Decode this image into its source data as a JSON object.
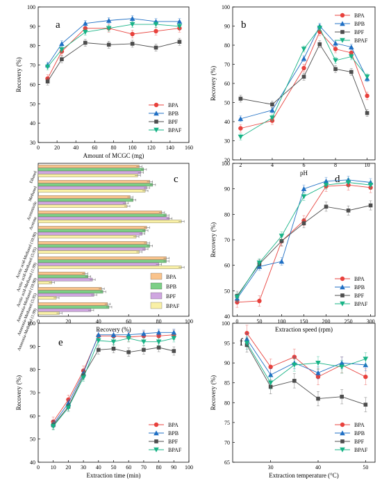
{
  "colors": {
    "BPA": "#e8413c",
    "BPB": "#1f6fc4",
    "BPF": "#4d4d4d",
    "BPAF": "#17b386",
    "bar_BPA": "#f9c38c",
    "bar_BPB": "#7ccf86",
    "bar_BPF": "#cfa6e0",
    "bar_BPAF": "#f9f0a6"
  },
  "chart_data": [
    {
      "id": "a",
      "type": "line",
      "panel_label": "a",
      "xlabel": "Amount of MCGC (mg)",
      "ylabel": "Recovery (%)",
      "xlim": [
        0,
        160
      ],
      "ylim": [
        30,
        100
      ],
      "xticks": [
        0,
        20,
        40,
        60,
        80,
        100,
        120,
        140,
        160
      ],
      "yticks": [
        30,
        40,
        50,
        60,
        70,
        80,
        90,
        100
      ],
      "x": [
        10,
        25,
        50,
        75,
        100,
        125,
        150
      ],
      "legend_position": "bottom-right",
      "series": [
        {
          "name": "BPA",
          "values": [
            63,
            77,
            89,
            89,
            86,
            87.5,
            89
          ]
        },
        {
          "name": "BPB",
          "values": [
            70,
            81,
            91.5,
            93,
            94,
            92.5,
            92.5
          ]
        },
        {
          "name": "BPF",
          "values": [
            61.5,
            73,
            81.5,
            80.5,
            81,
            79,
            82
          ]
        },
        {
          "name": "BPAF",
          "values": [
            69,
            78,
            87,
            89,
            91,
            91,
            90
          ]
        }
      ]
    },
    {
      "id": "b",
      "type": "line",
      "panel_label": "b",
      "xlabel": "pH",
      "ylabel": "Recovery (%)",
      "xlim": [
        1.5,
        10.5
      ],
      "ylim": [
        20,
        100
      ],
      "xticks": [
        2,
        4,
        6,
        8,
        10
      ],
      "yticks": [
        20,
        30,
        40,
        50,
        60,
        70,
        80,
        90,
        100
      ],
      "x": [
        2,
        4,
        6,
        7,
        8,
        9,
        10
      ],
      "legend_position": "top-right",
      "series": [
        {
          "name": "BPA",
          "values": [
            36.5,
            40.5,
            68,
            87,
            78,
            76,
            53.5
          ]
        },
        {
          "name": "BPB",
          "values": [
            41.5,
            46,
            73,
            90,
            81,
            79,
            62.5
          ]
        },
        {
          "name": "BPF",
          "values": [
            52,
            49,
            63.5,
            80.5,
            67.5,
            66,
            44.5
          ]
        },
        {
          "name": "BPAF",
          "values": [
            32,
            42,
            78,
            89,
            72,
            74,
            63.5
          ]
        }
      ]
    },
    {
      "id": "c",
      "type": "bar",
      "orientation": "horizontal",
      "panel_label": "c",
      "xlabel": "Recovery (%)",
      "ylabel": "",
      "xlim": [
        0,
        100
      ],
      "xticks": [
        0,
        20,
        40,
        60,
        80,
        100
      ],
      "categories": [
        "Ethanol",
        "Methanol",
        "Acetonitrile",
        "Acetone",
        "Acetic acid-Methanol (10:90)",
        "Acetic acid-Methanol (5:95)",
        "Acetic acid-Methanol (1:99)",
        "Ammonia-Methanol (10:90)",
        "Ammonia-Methanol (5:95)",
        "Ammonia-Methanol (1:99)"
      ],
      "legend_position": "bottom-right",
      "series": [
        {
          "name": "BPA",
          "values": [
            67,
            74,
            61,
            82,
            72,
            72,
            85,
            31,
            42,
            46
          ]
        },
        {
          "name": "BPB",
          "values": [
            70,
            76,
            63,
            85,
            71,
            74,
            85,
            33,
            43,
            47
          ]
        },
        {
          "name": "BPF",
          "values": [
            68,
            72,
            58,
            87,
            69,
            71,
            80,
            36,
            37,
            35
          ]
        },
        {
          "name": "BPAF",
          "values": [
            66,
            71,
            59,
            95,
            65,
            67,
            95,
            9,
            12,
            14
          ]
        }
      ]
    },
    {
      "id": "d",
      "type": "line",
      "panel_label": "d",
      "xlabel": "Extraction speed (rpm)",
      "ylabel": "Recovery (%)",
      "xlim": [
        -10,
        310
      ],
      "ylim": [
        40,
        100
      ],
      "xticks": [
        0,
        50,
        100,
        150,
        200,
        250,
        300
      ],
      "yticks": [
        40,
        50,
        60,
        70,
        80,
        90,
        100
      ],
      "x": [
        0,
        50,
        100,
        150,
        200,
        250,
        300
      ],
      "legend_position": "bottom-right",
      "series": [
        {
          "name": "BPA",
          "values": [
            45.5,
            46,
            69.5,
            77.5,
            91,
            91.5,
            90.5
          ]
        },
        {
          "name": "BPB",
          "values": [
            47,
            59.5,
            61.5,
            90,
            93,
            93.5,
            92.5
          ]
        },
        {
          "name": "BPF",
          "values": [
            48,
            60.5,
            69.5,
            76.5,
            83,
            81.5,
            83.5
          ]
        },
        {
          "name": "BPAF",
          "values": [
            47.5,
            61,
            71.5,
            87,
            91.5,
            92.5,
            91.5
          ]
        }
      ]
    },
    {
      "id": "e",
      "type": "line",
      "panel_label": "e",
      "xlabel": "Extraction time (min)",
      "ylabel": "Recovery (%)",
      "xlim": [
        0,
        100
      ],
      "ylim": [
        40,
        100
      ],
      "xticks": [
        0,
        10,
        20,
        30,
        40,
        50,
        60,
        70,
        80,
        90,
        100
      ],
      "yticks": [
        40,
        50,
        60,
        70,
        80,
        90,
        100
      ],
      "x": [
        10,
        20,
        30,
        40,
        50,
        60,
        70,
        80,
        90
      ],
      "legend_position": "bottom-right",
      "series": [
        {
          "name": "BPA",
          "values": [
            57.5,
            67,
            79.5,
            94.5,
            94.5,
            94,
            94.5,
            94.5,
            95
          ]
        },
        {
          "name": "BPB",
          "values": [
            56.5,
            65.5,
            78.5,
            95,
            95,
            95,
            95.5,
            96,
            96
          ]
        },
        {
          "name": "BPF",
          "values": [
            56,
            64,
            77.5,
            88.5,
            89,
            87.5,
            88.5,
            89.5,
            88
          ]
        },
        {
          "name": "BPAF",
          "values": [
            55.5,
            63.5,
            76.5,
            92.5,
            92,
            93.5,
            92,
            92,
            93.5
          ]
        }
      ]
    },
    {
      "id": "f",
      "type": "line",
      "panel_label": "f",
      "xlabel": "Extraction temperature (°C)",
      "ylabel": "Recovery (%)",
      "xlim": [
        22,
        52
      ],
      "ylim": [
        65,
        100
      ],
      "xticks": [
        30,
        40,
        50
      ],
      "yticks": [
        65,
        70,
        75,
        80,
        85,
        90,
        95,
        100
      ],
      "x": [
        25,
        30,
        35,
        40,
        45,
        50
      ],
      "legend_position": "bottom-right",
      "series": [
        {
          "name": "BPA",
          "values": [
            97.5,
            89,
            91.5,
            86.5,
            89.5,
            86.5
          ]
        },
        {
          "name": "BPB",
          "values": [
            96,
            87,
            90,
            87.5,
            90,
            89.5
          ]
        },
        {
          "name": "BPF",
          "values": [
            94.5,
            84,
            85.5,
            81,
            81.5,
            79.5
          ]
        },
        {
          "name": "BPAF",
          "values": [
            95,
            85,
            89.5,
            90,
            89,
            91
          ]
        }
      ]
    }
  ]
}
